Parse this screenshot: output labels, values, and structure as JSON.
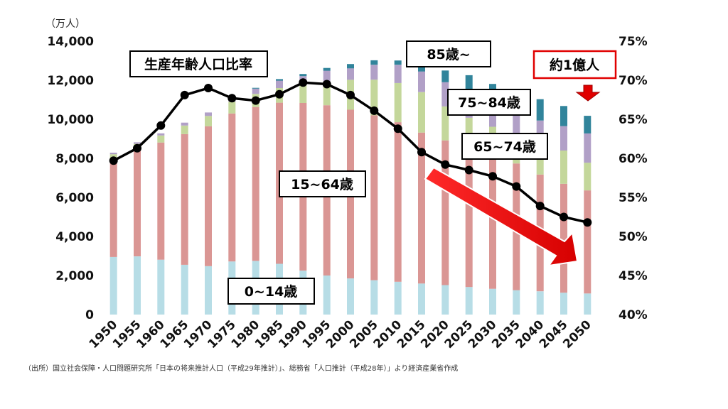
{
  "chart_data": {
    "type": "bar",
    "stacked": true,
    "left_axis_unit": "（万人）",
    "ylim": [
      0,
      14000
    ],
    "yticks": [
      "0",
      "2,000",
      "4,000",
      "6,000",
      "8,000",
      "10,000",
      "12,000",
      "14,000"
    ],
    "y2lim": [
      40,
      75
    ],
    "y2ticks": [
      "40%",
      "45%",
      "50%",
      "55%",
      "60%",
      "65%",
      "70%",
      "75%"
    ],
    "categories": [
      "1950",
      "1955",
      "1960",
      "1965",
      "1970",
      "1975",
      "1980",
      "1985",
      "1990",
      "1995",
      "2000",
      "2005",
      "2010",
      "2015",
      "2020",
      "2025",
      "2030",
      "2035",
      "2040",
      "2045",
      "2050"
    ],
    "series": [
      {
        "name": "0~14歳",
        "color": "#b7dde6",
        "values": [
          2950,
          2980,
          2810,
          2550,
          2480,
          2720,
          2750,
          2600,
          2250,
          2000,
          1850,
          1760,
          1680,
          1590,
          1510,
          1410,
          1320,
          1250,
          1190,
          1120,
          1080
        ]
      },
      {
        "name": "15~64歳",
        "color": "#da9694",
        "values": [
          5020,
          5470,
          6000,
          6690,
          7160,
          7580,
          7880,
          8250,
          8590,
          8720,
          8640,
          8440,
          8170,
          7730,
          7410,
          7170,
          6870,
          6490,
          5980,
          5580,
          5280
        ]
      },
      {
        "name": "65~74歳",
        "color": "#c4d79b",
        "values": [
          240,
          290,
          360,
          440,
          530,
          600,
          670,
          750,
          900,
          1220,
          1530,
          1830,
          2010,
          2070,
          1740,
          1500,
          1430,
          1490,
          1680,
          1700,
          1420
        ]
      },
      {
        "name": "75~84歳",
        "color": "#b1a0c7",
        "values": [
          80,
          80,
          110,
          150,
          180,
          210,
          270,
          380,
          470,
          550,
          590,
          760,
          930,
          1060,
          1240,
          1460,
          1330,
          1080,
          1090,
          1250,
          1500
        ]
      },
      {
        "name": "85歳~",
        "color": "#31849b",
        "values": [
          0,
          0,
          0,
          0,
          0,
          20,
          40,
          80,
          110,
          140,
          220,
          230,
          220,
          420,
          600,
          720,
          860,
          1000,
          1090,
          1030,
          900
        ]
      }
    ],
    "line_series": {
      "name": "生産年齢人口比率",
      "color": "#000000",
      "values": [
        59.7,
        61.3,
        64.2,
        68.1,
        69.0,
        67.7,
        67.4,
        68.2,
        69.7,
        69.5,
        68.1,
        66.1,
        63.8,
        60.8,
        59.2,
        58.5,
        57.7,
        56.4,
        53.9,
        52.5,
        51.8
      ]
    },
    "annotations": {
      "ratio": "生産年齢人口比率",
      "s85": "85歳~",
      "s75": "75~84歳",
      "s65": "65~74歳",
      "s15": "15~64歳",
      "s0": "0~14歳",
      "callout": "約1億人"
    },
    "arrow_color": "#e00000"
  },
  "source_note": "（出所）国立社会保障・人口問題研究所「日本の将来推計人口（平成29年推計）」、総務省「人口推計（平成28年）」より経済産業省作成"
}
